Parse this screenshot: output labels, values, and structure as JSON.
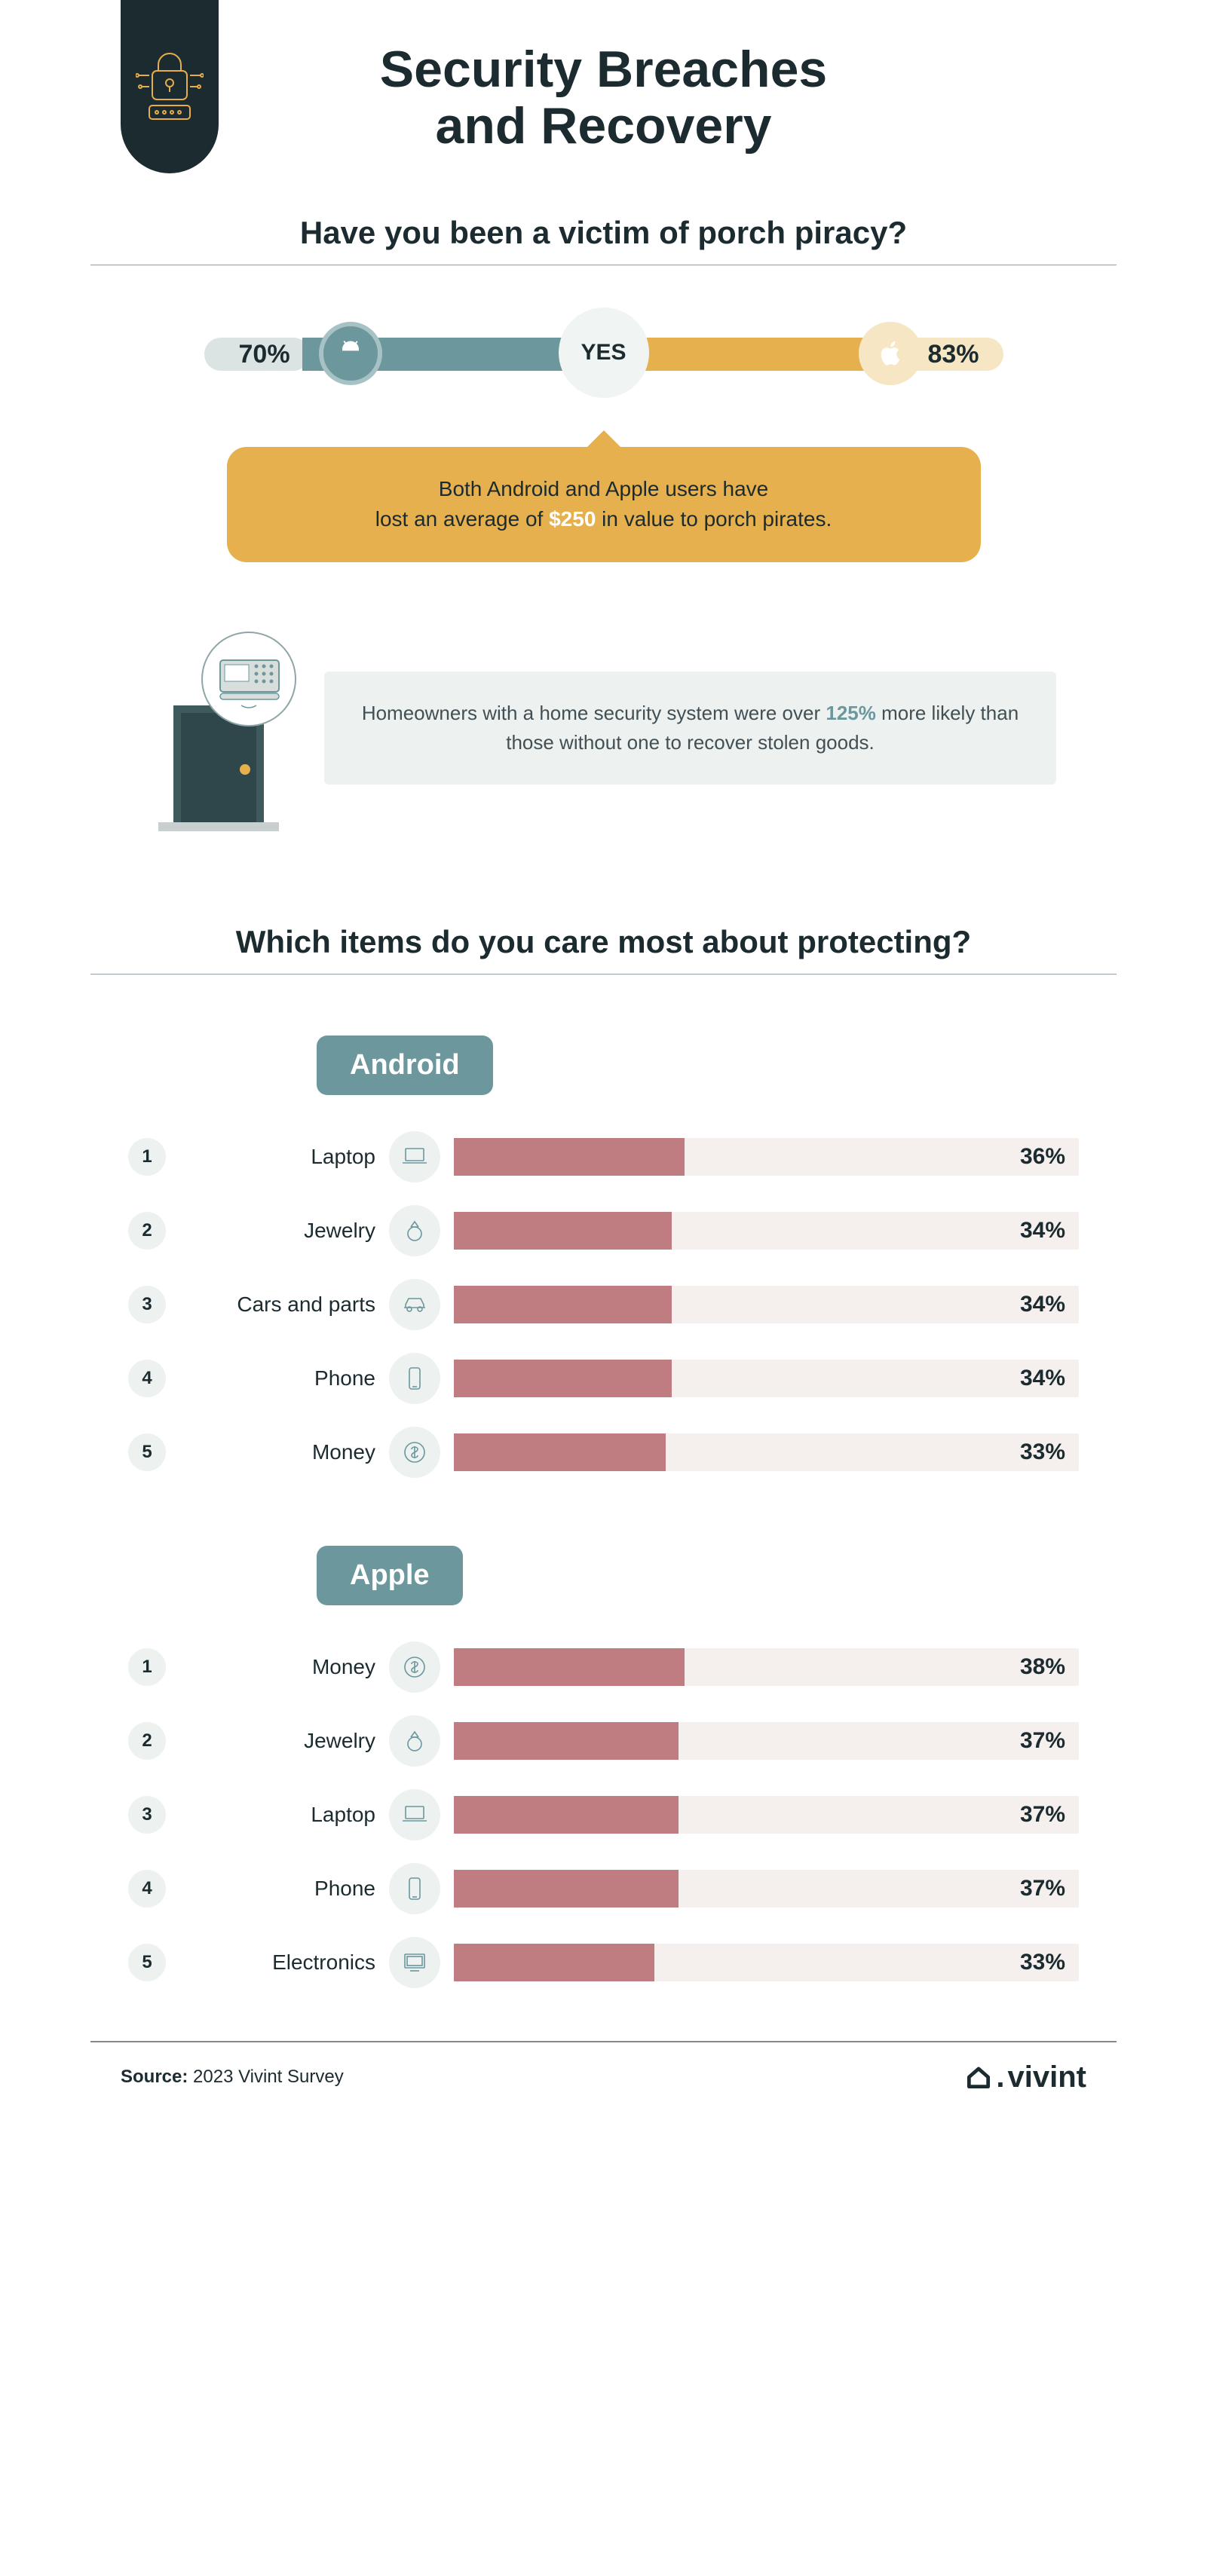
{
  "colors": {
    "dark": "#1b2b30",
    "teal": "#6b979d",
    "teal_light": "#dbe3e3",
    "gold": "#e6b04e",
    "gold_light": "#f6e6c3",
    "bar_fill": "#c07d81",
    "bar_track": "#f5efee",
    "panel_light": "#edf1f0",
    "text_muted": "#425055",
    "white": "#ffffff"
  },
  "title_line1": "Security Breaches",
  "title_line2": "and Recovery",
  "section1_heading": "Have you been a victim of porch piracy?",
  "yes_bar": {
    "center_label": "YES",
    "android_pct_label": "70%",
    "android_pct_value": 70,
    "apple_pct_label": "83%",
    "apple_pct_value": 83
  },
  "gold_callout_pre": "Both Android and Apple users have",
  "gold_callout_mid": "lost an average of ",
  "gold_callout_highlight": "$250",
  "gold_callout_post": " in value to porch pirates.",
  "security_callout_pre": "Homeowners with a home security system were over ",
  "security_callout_emph": "125%",
  "security_callout_post": " more likely than those without one to recover stolen goods.",
  "section2_heading": "Which items do you care most about protecting?",
  "android_label": "Android",
  "apple_label": "Apple",
  "bar_max_pct_width": 0.88,
  "android_items": [
    {
      "rank": "1",
      "label": "Laptop",
      "icon": "laptop",
      "pct": 36,
      "pct_label": "36%"
    },
    {
      "rank": "2",
      "label": "Jewelry",
      "icon": "ring",
      "pct": 34,
      "pct_label": "34%"
    },
    {
      "rank": "3",
      "label": "Cars and parts",
      "icon": "car",
      "pct": 34,
      "pct_label": "34%"
    },
    {
      "rank": "4",
      "label": "Phone",
      "icon": "phone",
      "pct": 34,
      "pct_label": "34%"
    },
    {
      "rank": "5",
      "label": "Money",
      "icon": "money",
      "pct": 33,
      "pct_label": "33%"
    }
  ],
  "apple_items": [
    {
      "rank": "1",
      "label": "Money",
      "icon": "money",
      "pct": 38,
      "pct_label": "38%"
    },
    {
      "rank": "2",
      "label": "Jewelry",
      "icon": "ring",
      "pct": 37,
      "pct_label": "37%"
    },
    {
      "rank": "3",
      "label": "Laptop",
      "icon": "laptop",
      "pct": 37,
      "pct_label": "37%"
    },
    {
      "rank": "4",
      "label": "Phone",
      "icon": "phone",
      "pct": 37,
      "pct_label": "37%"
    },
    {
      "rank": "5",
      "label": "Electronics",
      "icon": "monitor",
      "pct": 33,
      "pct_label": "33%"
    }
  ],
  "source_label": "Source: ",
  "source_value": "2023 Vivint Survey",
  "brand_name": "vivint"
}
